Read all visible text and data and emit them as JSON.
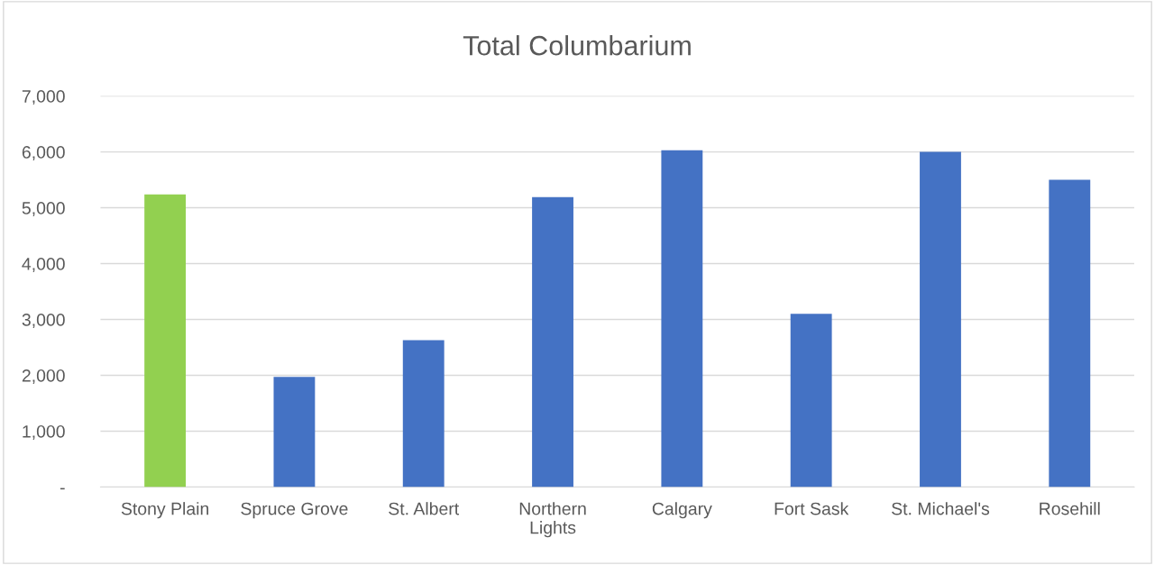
{
  "chart_data": {
    "type": "bar",
    "title": "Total Columbarium",
    "categories": [
      "Stony Plain",
      "Spruce Grove",
      "St. Albert",
      "Northern\nLights",
      "Calgary",
      "Fort Sask",
      "St. Michael's",
      "Rosehill"
    ],
    "values": [
      5240,
      1970,
      2630,
      5190,
      6030,
      3100,
      6000,
      5500
    ],
    "colors": [
      "#92d050",
      "#4472c4",
      "#4472c4",
      "#4472c4",
      "#4472c4",
      "#4472c4",
      "#4472c4",
      "#4472c4"
    ],
    "ylim": [
      0,
      7000
    ],
    "yticks": [
      {
        "value": 0,
        "label": "-"
      },
      {
        "value": 1000,
        "label": "1,000"
      },
      {
        "value": 2000,
        "label": "2,000"
      },
      {
        "value": 3000,
        "label": "3,000"
      },
      {
        "value": 4000,
        "label": "4,000"
      },
      {
        "value": 5000,
        "label": "5,000"
      },
      {
        "value": 6000,
        "label": "6,000"
      },
      {
        "value": 7000,
        "label": "7,000"
      }
    ],
    "grid": "y"
  }
}
